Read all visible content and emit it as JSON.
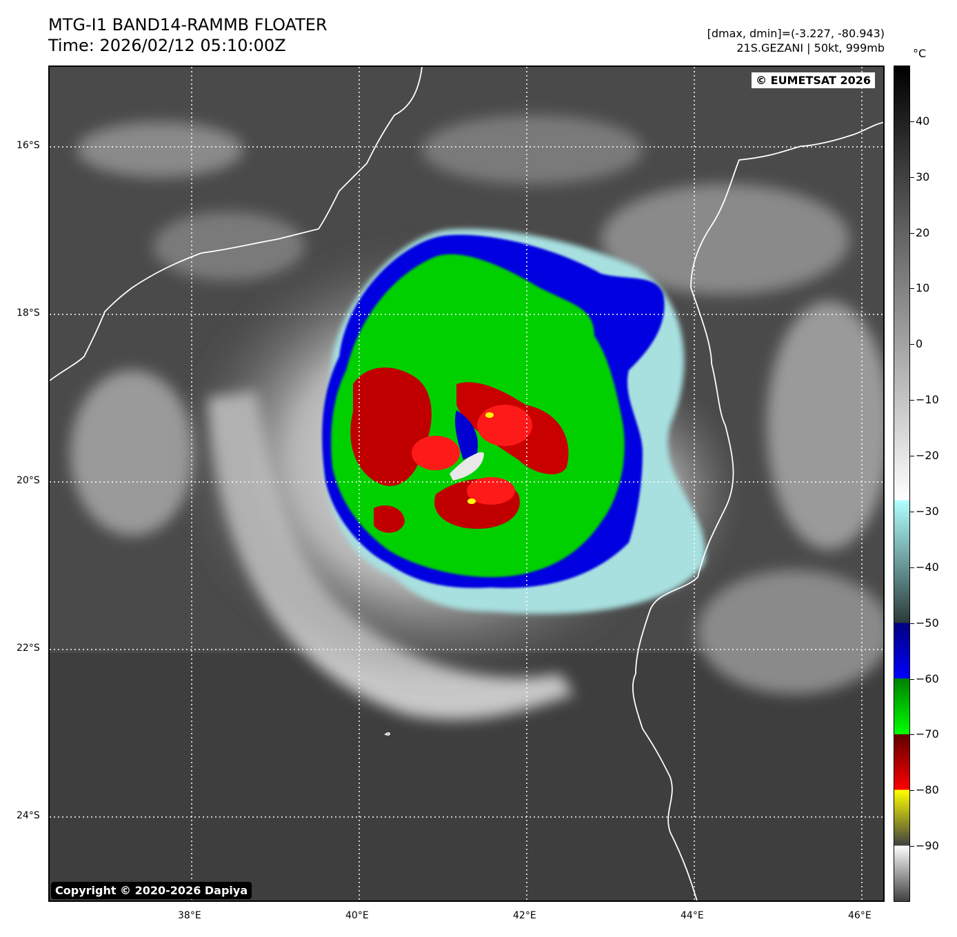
{
  "header": {
    "title_line1": "MTG-I1 BAND14-RAMMB FLOATER",
    "title_line2": "Time: 2026/02/12 05:10:00Z",
    "range_info": "[dmax, dmin]=(-3.227, -80.943)",
    "storm_info": "21S.GEZANI | 50kt, 999mb"
  },
  "map": {
    "eumetsat_credit": "© EUMETSAT 2026",
    "dapiya_credit": "Copyright © 2020-2026 Dapiya",
    "lat_labels": [
      "16°S",
      "18°S",
      "20°S",
      "22°S",
      "24°S"
    ],
    "lon_labels": [
      "38°E",
      "40°E",
      "42°E",
      "44°E",
      "46°E"
    ]
  },
  "colorbar": {
    "unit": "°C",
    "labels": [
      "40",
      "30",
      "20",
      "10",
      "0",
      "−10",
      "−20",
      "−30",
      "−40",
      "−50",
      "−60",
      "−70",
      "−80",
      "−90"
    ],
    "max": 50,
    "min": -100,
    "segments": [
      {
        "from": 50,
        "to": -28,
        "colors": [
          "#000000",
          "#ffffff"
        ]
      },
      {
        "from": -28,
        "to": -50,
        "colors": [
          "#b0ffff",
          "#2a3a3a"
        ]
      },
      {
        "from": -50,
        "to": -60,
        "colors": [
          "#000080",
          "#0000ff"
        ]
      },
      {
        "from": -60,
        "to": -70,
        "colors": [
          "#008000",
          "#00ff00"
        ]
      },
      {
        "from": -70,
        "to": -80,
        "colors": [
          "#600000",
          "#ff0000"
        ]
      },
      {
        "from": -80,
        "to": -90,
        "colors": [
          "#ffff00",
          "#404040"
        ]
      },
      {
        "from": -90,
        "to": -100,
        "colors": [
          "#ffffff",
          "#404040"
        ]
      }
    ]
  }
}
